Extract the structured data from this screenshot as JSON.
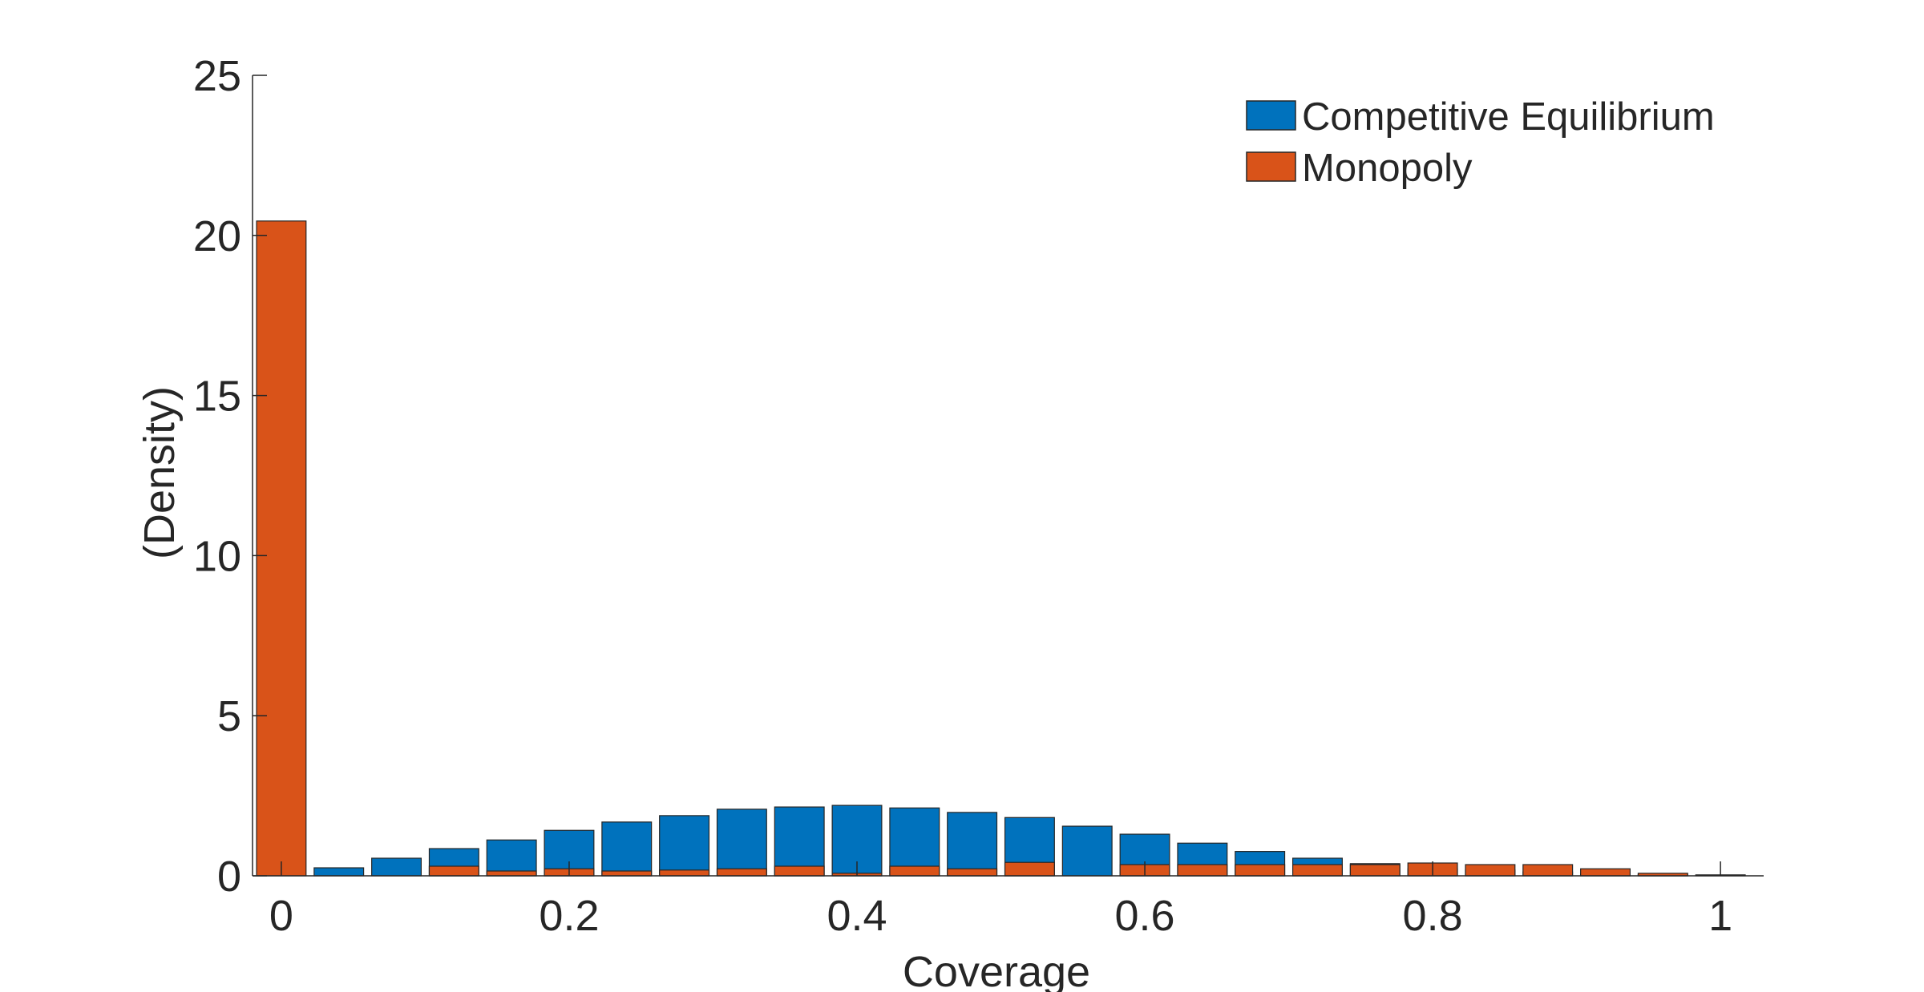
{
  "chart_data": {
    "type": "bar",
    "xlabel": "Coverage",
    "ylabel": "(Density)",
    "xlim": [
      -0.02,
      1.03
    ],
    "ylim": [
      0,
      25
    ],
    "xticks": [
      0,
      0.2,
      0.4,
      0.6,
      0.8,
      1
    ],
    "xtick_labels": [
      "0",
      "0.2",
      "0.4",
      "0.6",
      "0.8",
      "1"
    ],
    "yticks": [
      0,
      5,
      10,
      15,
      20,
      25
    ],
    "ytick_labels": [
      "0",
      "5",
      "10",
      "15",
      "20",
      "25"
    ],
    "grid": false,
    "legend_position": "top-right",
    "x": [
      0,
      0.04,
      0.08,
      0.12,
      0.16,
      0.2,
      0.24,
      0.28,
      0.32,
      0.36,
      0.4,
      0.44,
      0.48,
      0.52,
      0.56,
      0.6,
      0.64,
      0.68,
      0.72,
      0.76,
      0.8,
      0.84,
      0.88,
      0.92,
      0.96,
      1.0
    ],
    "series": [
      {
        "name": "Competitive Equilibrium",
        "color": "#0072BD",
        "values": [
          0,
          0.25,
          0.55,
          0.85,
          1.12,
          1.42,
          1.68,
          1.88,
          2.08,
          2.15,
          2.2,
          2.12,
          1.98,
          1.82,
          1.55,
          1.3,
          1.02,
          0.76,
          0.55,
          0.38,
          0.22,
          0.18,
          0.12,
          0.06,
          0.04,
          0.03
        ]
      },
      {
        "name": "Monopoly",
        "color": "#D95319",
        "values": [
          20.45,
          0,
          0,
          0.3,
          0.15,
          0.22,
          0.15,
          0.18,
          0.22,
          0.3,
          0.08,
          0.3,
          0.22,
          0.42,
          0,
          0.35,
          0.35,
          0.35,
          0.35,
          0.35,
          0.4,
          0.35,
          0.35,
          0.22,
          0.08,
          0
        ]
      }
    ]
  }
}
